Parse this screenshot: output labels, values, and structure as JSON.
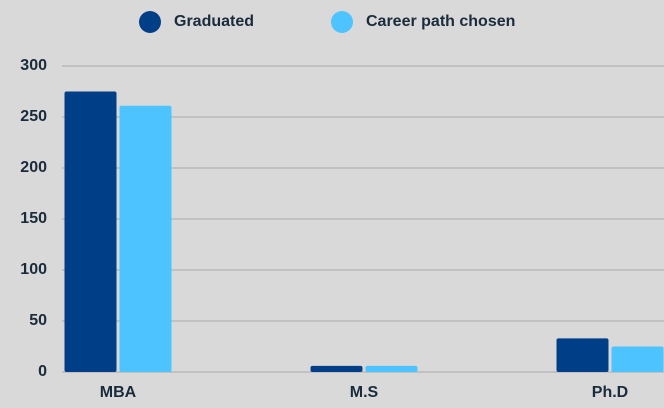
{
  "chart_data": {
    "type": "bar",
    "categories": [
      "MBA",
      "M.S",
      "Ph.D"
    ],
    "series": [
      {
        "name": "Graduated",
        "color": "#003f87",
        "values": [
          275,
          6,
          33
        ]
      },
      {
        "name": "Career path chosen",
        "color": "#4dc3ff",
        "values": [
          261,
          6,
          25
        ]
      }
    ],
    "ylim": [
      0,
      300
    ],
    "yticks": [
      0,
      50,
      100,
      150,
      200,
      250,
      300
    ],
    "grid": true,
    "legend": "top"
  }
}
